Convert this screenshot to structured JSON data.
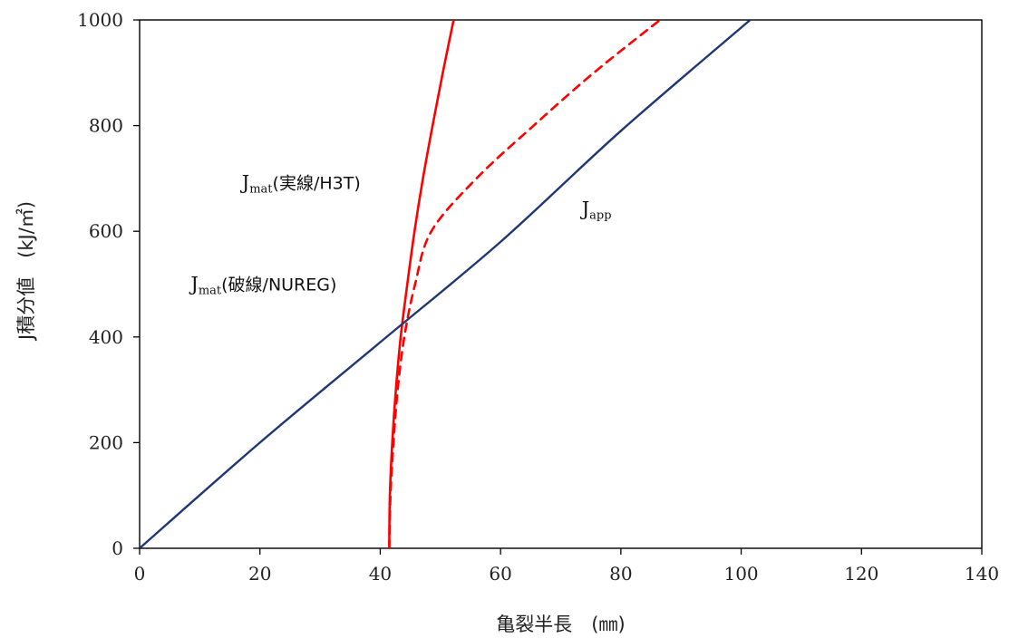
{
  "chart_data": {
    "type": "line",
    "title": "",
    "xlabel": "亀裂半長　(㎜)",
    "ylabel": "J積分値　(kJ/㎡)",
    "xlim": [
      0,
      140
    ],
    "ylim": [
      0,
      1000
    ],
    "x_ticks": [
      "0",
      "20",
      "40",
      "60",
      "80",
      "100",
      "120",
      "140"
    ],
    "y_ticks": [
      "0",
      "200",
      "400",
      "600",
      "800",
      "1000"
    ],
    "grid": false,
    "legend": "none",
    "series": [
      {
        "key": "jmat_h3t",
        "color": "#ff0000",
        "line_style": "solid",
        "points": [
          {
            "x": 41.5,
            "y": 0
          },
          {
            "x": 41.6,
            "y": 100
          },
          {
            "x": 42.0,
            "y": 200
          },
          {
            "x": 42.6,
            "y": 300
          },
          {
            "x": 43.4,
            "y": 400
          },
          {
            "x": 44.5,
            "y": 500
          },
          {
            "x": 45.7,
            "y": 600
          },
          {
            "x": 47.1,
            "y": 700
          },
          {
            "x": 48.7,
            "y": 800
          },
          {
            "x": 50.4,
            "y": 900
          },
          {
            "x": 52.2,
            "y": 1000
          }
        ]
      },
      {
        "key": "jmat_nureg",
        "color": "#ff0000",
        "line_style": "dashed",
        "points": [
          {
            "x": 41.5,
            "y": 0
          },
          {
            "x": 41.7,
            "y": 100
          },
          {
            "x": 42.2,
            "y": 200
          },
          {
            "x": 42.9,
            "y": 300
          },
          {
            "x": 44.0,
            "y": 400
          },
          {
            "x": 45.8,
            "y": 500
          },
          {
            "x": 48.5,
            "y": 600
          },
          {
            "x": 56.0,
            "y": 700
          },
          {
            "x": 65.5,
            "y": 800
          },
          {
            "x": 75.5,
            "y": 900
          },
          {
            "x": 86.5,
            "y": 1000
          }
        ]
      },
      {
        "key": "japp",
        "color": "#1f3873",
        "line_style": "solid",
        "points": [
          {
            "x": 0,
            "y": 0
          },
          {
            "x": 20,
            "y": 200
          },
          {
            "x": 40,
            "y": 390
          },
          {
            "x": 60,
            "y": 580
          },
          {
            "x": 80,
            "y": 790
          },
          {
            "x": 101.5,
            "y": 1000
          }
        ]
      }
    ],
    "annotations": [
      {
        "key": "jmat-h3t",
        "main": "J",
        "sub": "mat",
        "suffix": "(実線/H3T)",
        "x": 17.0,
        "y": 680
      },
      {
        "key": "jmat-nureg",
        "main": "J",
        "sub": "mat",
        "suffix": "(破線/NUREG)",
        "x": 8.5,
        "y": 488
      },
      {
        "key": "japp",
        "main": "J",
        "sub": "app",
        "suffix": "",
        "x": 73.5,
        "y": 630
      }
    ]
  }
}
